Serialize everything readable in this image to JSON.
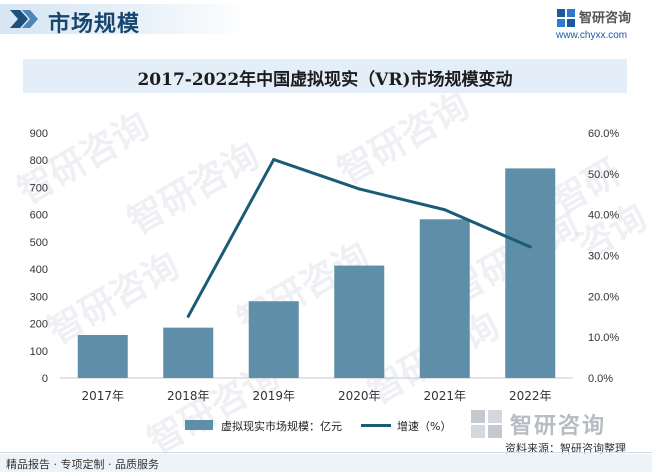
{
  "header": {
    "section_title": "市场规模",
    "logo_text": "智研咨询",
    "logo_url": "www.chyxx.com"
  },
  "watermark": "智研咨询",
  "chart_data": {
    "type": "bar+line",
    "title": "2017-2022年中国虚拟现实（VR)市场规模变动",
    "categories": [
      "2017年",
      "2018年",
      "2019年",
      "2020年",
      "2021年",
      "2022年"
    ],
    "series": [
      {
        "name": "虚拟现实市场规模：亿元",
        "type": "bar",
        "axis": "left",
        "values": [
          158,
          185,
          282,
          413,
          583,
          770
        ],
        "color": "#5f8fa8"
      },
      {
        "name": "增速（%）",
        "type": "line",
        "axis": "right",
        "values": [
          null,
          15.1,
          53.5,
          46.3,
          41.2,
          32.1
        ],
        "color": "#1a5c75"
      }
    ],
    "y_left": {
      "range": [
        0,
        900
      ],
      "ticks": [
        "0",
        "100",
        "200",
        "300",
        "400",
        "500",
        "600",
        "700",
        "800",
        "900"
      ]
    },
    "y_right": {
      "range": [
        0,
        60
      ],
      "ticks": [
        "0.0%",
        "10.0%",
        "20.0%",
        "30.0%",
        "40.0%",
        "50.0%",
        "60.0%"
      ]
    },
    "grid": false,
    "legend_position": "bottom"
  },
  "footer": {
    "source": "资料来源：智研咨询整理",
    "big_logo": "智研咨询",
    "tagline": "精品报告 · 专项定制 · 品质服务"
  }
}
